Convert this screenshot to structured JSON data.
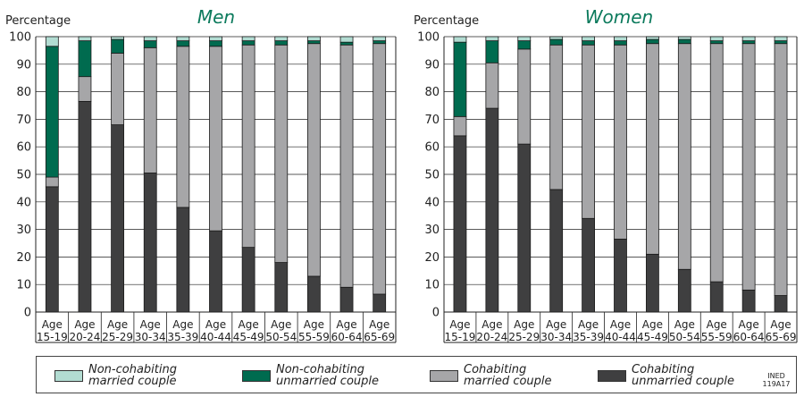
{
  "colors": {
    "non_cohab_married": "#b2dcd2",
    "non_cohab_unmarried": "#006b4f",
    "cohab_married": "#a6a6a8",
    "cohab_unmarried": "#3f3f40"
  },
  "legend": [
    {
      "key": "non_cohab_married",
      "line1": "Non-cohabiting",
      "line2": "married couple"
    },
    {
      "key": "non_cohab_unmarried",
      "line1": "Non-cohabiting",
      "line2": "unmarried couple"
    },
    {
      "key": "cohab_married",
      "line1": "Cohabiting",
      "line2": "married couple"
    },
    {
      "key": "cohab_unmarried",
      "line1": "Cohabiting",
      "line2": "unmarried couple"
    }
  ],
  "credit": {
    "line1": "INED",
    "line2": "119A17"
  },
  "chart_data": [
    {
      "type": "bar",
      "stacked": true,
      "title": "Men",
      "ylabel": "Percentage",
      "ylim": [
        0,
        100
      ],
      "yticks": [
        0,
        10,
        20,
        30,
        40,
        50,
        60,
        70,
        80,
        90,
        100
      ],
      "categories": [
        {
          "line1": "Age",
          "line2": "15-19"
        },
        {
          "line1": "Age",
          "line2": "20-24"
        },
        {
          "line1": "Age",
          "line2": "25-29"
        },
        {
          "line1": "Age",
          "line2": "30-34"
        },
        {
          "line1": "Age",
          "line2": "35-39"
        },
        {
          "line1": "Age",
          "line2": "40-44"
        },
        {
          "line1": "Age",
          "line2": "45-49"
        },
        {
          "line1": "Age",
          "line2": "50-54"
        },
        {
          "line1": "Age",
          "line2": "55-59"
        },
        {
          "line1": "Age",
          "line2": "60-64"
        },
        {
          "line1": "Age",
          "line2": "65-69"
        }
      ],
      "series": [
        {
          "key": "cohab_unmarried",
          "name": "Cohabiting unmarried couple",
          "values": [
            45.5,
            76.5,
            68,
            50.5,
            38,
            29.5,
            23.5,
            18,
            13,
            9,
            6.5
          ]
        },
        {
          "key": "cohab_married",
          "name": "Cohabiting married couple",
          "values": [
            3.5,
            9,
            26,
            45.5,
            58.5,
            67,
            73.5,
            79,
            84.5,
            88,
            91
          ]
        },
        {
          "key": "non_cohab_unmarried",
          "name": "Non-cohabiting unmarried couple",
          "values": [
            47.5,
            13,
            5,
            2.5,
            2,
            2,
            1.5,
            1.5,
            1,
            1,
            1
          ]
        },
        {
          "key": "non_cohab_married",
          "name": "Non-cohabiting married couple",
          "values": [
            3.5,
            1.5,
            1,
            1.5,
            1.5,
            1.5,
            1.5,
            1.5,
            1.5,
            2,
            1.5
          ]
        }
      ]
    },
    {
      "type": "bar",
      "stacked": true,
      "title": "Women",
      "ylabel": "Percentage",
      "ylim": [
        0,
        100
      ],
      "yticks": [
        0,
        10,
        20,
        30,
        40,
        50,
        60,
        70,
        80,
        90,
        100
      ],
      "categories": [
        {
          "line1": "Age",
          "line2": "15-19"
        },
        {
          "line1": "Age",
          "line2": "20-24"
        },
        {
          "line1": "Age",
          "line2": "25-29"
        },
        {
          "line1": "Age",
          "line2": "30-34"
        },
        {
          "line1": "Age",
          "line2": "35-39"
        },
        {
          "line1": "Age",
          "line2": "40-44"
        },
        {
          "line1": "Age",
          "line2": "45-49"
        },
        {
          "line1": "Age",
          "line2": "50-54"
        },
        {
          "line1": "Age",
          "line2": "55-59"
        },
        {
          "line1": "Age",
          "line2": "60-64"
        },
        {
          "line1": "Age",
          "line2": "65-69"
        }
      ],
      "series": [
        {
          "key": "cohab_unmarried",
          "name": "Cohabiting unmarried couple",
          "values": [
            64,
            74,
            61,
            44.5,
            34,
            26.5,
            21,
            15.5,
            11,
            8,
            6
          ]
        },
        {
          "key": "cohab_married",
          "name": "Cohabiting married couple",
          "values": [
            7,
            16.5,
            34.5,
            52.5,
            63,
            70.5,
            76.5,
            82,
            86.5,
            89.5,
            91.5
          ]
        },
        {
          "key": "non_cohab_unmarried",
          "name": "Non-cohabiting unmarried couple",
          "values": [
            27,
            8,
            3,
            2,
            1.5,
            1.5,
            1.5,
            1.5,
            1,
            1,
            1
          ]
        },
        {
          "key": "non_cohab_married",
          "name": "Non-cohabiting married couple",
          "values": [
            2,
            1.5,
            1.5,
            1,
            1.5,
            1.5,
            1,
            1,
            1.5,
            1.5,
            1.5
          ]
        }
      ]
    }
  ]
}
